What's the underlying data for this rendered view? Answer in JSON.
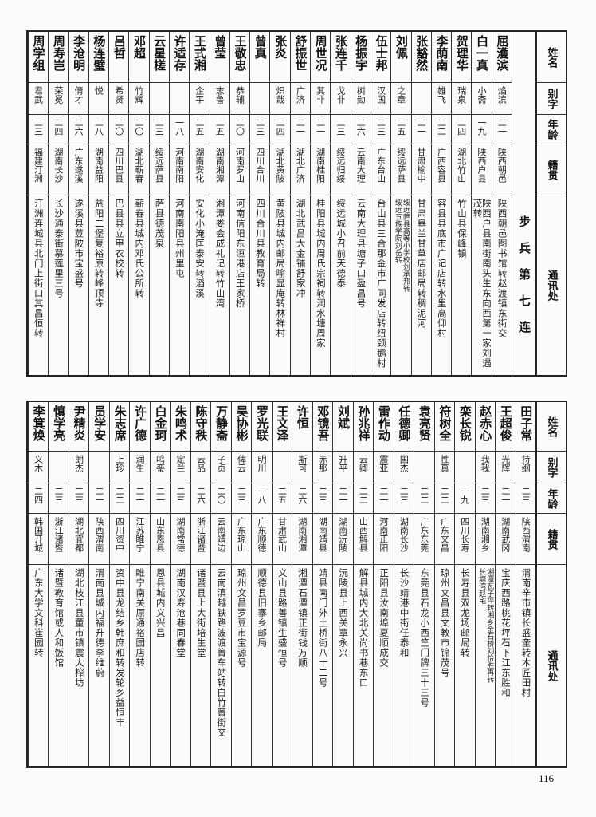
{
  "headers": {
    "name": "姓名",
    "alias": "别字",
    "age": "年龄",
    "native": "籍贯",
    "address": "通讯处"
  },
  "top": {
    "section_label": "步兵第七连",
    "rows": [
      {
        "name": "屈濩滨",
        "alias": "焰滨",
        "age": "二一",
        "native": "陕西朝邑",
        "address": [
          "陕西朝邑图书馆转赵渡镇东街交"
        ]
      },
      {
        "name": "白一真",
        "alias": "小斋",
        "age": "一九",
        "native": "陕西户县",
        "address": [
          "陕西户县南街南头生东向西第一家刘遇茂转"
        ]
      },
      {
        "name": "贺理华",
        "alias": "瑞泉",
        "age": "二四",
        "native": "湖北竹山",
        "address": [
          "竹山县保峰镇"
        ]
      },
      {
        "name": "李荫南",
        "alias": "雄飞",
        "age": "二二",
        "native": "广西容县",
        "address": [
          "容县县底市广记店转水里高仰村"
        ]
      },
      {
        "name": "张豁然",
        "alias": "",
        "age": "二一",
        "native": "甘肃榆中",
        "address": [
          "甘肃皋兰甘草店邮局转稠泥河"
        ]
      },
      {
        "name": "刘佩",
        "alias": "之章",
        "age": "二五",
        "native": "绥远萨县",
        "address": [
          "绥远萨县高等小学校刘承邦转",
          "绥远五族学院刘岳转"
        ]
      },
      {
        "name": "伍士邦",
        "alias": "汉国",
        "age": "二三",
        "native": "广东台山",
        "address": [
          "台山县三合那金市广同发店转纽颈鹅村"
        ]
      },
      {
        "name": "杨振宇",
        "alias": "树勋",
        "age": "二六",
        "native": "云南大理",
        "address": [
          "云南大理县塘子口盈昌号"
        ]
      },
      {
        "name": "张连千",
        "alias": "戈非",
        "age": "二三",
        "native": "绥远归绥",
        "address": [
          "绥远城小召前天德泰"
        ]
      },
      {
        "name": "周世况",
        "alias": "其非",
        "age": "二一",
        "native": "湖南桂阳",
        "address": [
          "桂阳县城内周氏宗祠转洞水塘周家"
        ]
      },
      {
        "name": "舒振世",
        "alias": "广济",
        "age": "二一",
        "native": "湖北广济",
        "address": [
          "湖北武昌大金铺舒家冲"
        ]
      },
      {
        "name": "张炎",
        "alias": "炽哉",
        "age": "二四",
        "native": "湖北黄陂",
        "address": [
          "黄陂县城内邮局喻显庵转林祥村"
        ]
      },
      {
        "name": "曾真",
        "alias": "",
        "age": "二三",
        "native": "四川合川",
        "address": [
          "四川合川县教育局转"
        ]
      },
      {
        "name": "王敬忠",
        "alias": "恭辅",
        "age": "二〇",
        "native": "河南罗山",
        "address": [
          "河南信阳东洹港店王家桥"
        ]
      },
      {
        "name": "曾莹",
        "alias": "志鲁",
        "age": "二五",
        "native": "湖南湘潭",
        "address": [
          "湘潭娄会成礼记转竹山湾"
        ]
      },
      {
        "name": "王式湘",
        "alias": "企平",
        "age": "二五",
        "native": "湖南安化",
        "address": [
          "安化小淹匡泰安转滔溪"
        ]
      },
      {
        "name": "许适存",
        "alias": "",
        "age": "一八",
        "native": "河南南阳",
        "address": [
          "河南南阳县州里屯"
        ]
      },
      {
        "name": "云星槎",
        "alias": "",
        "age": "二三",
        "native": "绥远萨县",
        "address": [
          "萨县德茂泉"
        ]
      },
      {
        "name": "邓超",
        "alias": "竹辉",
        "age": "二〇",
        "native": "湖北蕲春",
        "address": [
          "蕲春县城内邓氏公所转"
        ]
      },
      {
        "name": "吕哲",
        "alias": "希贤",
        "age": "二〇",
        "native": "四川巴县",
        "address": [
          "巴县县立甲农校转"
        ]
      },
      {
        "name": "杨连璧",
        "alias": "悦",
        "age": "二八",
        "native": "湖南益阳",
        "address": [
          "益阳二堡复裕原转峰顶寺"
        ]
      },
      {
        "name": "李沧明",
        "alias": "倩才",
        "age": "二六",
        "native": "广东遂溪",
        "address": [
          "遂溪县荳陂市宝盛号"
        ]
      },
      {
        "name": "周寿岂",
        "alias": "荣冕",
        "age": "二四",
        "native": "湖南长沙",
        "address": [
          "长沙通泰街慕莲里三号"
        ]
      },
      {
        "name": "周学组",
        "alias": "君武",
        "age": "二三",
        "native": "福建汀洲",
        "address": [
          "汀洲连城县北门上街口其昌恒转"
        ]
      }
    ]
  },
  "bottom": {
    "rows": [
      {
        "name": "田子常",
        "alias": "持纲",
        "age": "二三",
        "native": "陕西渭南",
        "address": [
          "渭南辛市镇长盛奎转木匠田村"
        ]
      },
      {
        "name": "王超俊",
        "alias": "光辉",
        "age": "二一",
        "native": "湖南武冈",
        "address": [
          "宝庆西路桃花坪石下江东胜和"
        ]
      },
      {
        "name": "赵赤心",
        "alias": "我我",
        "age": "二三",
        "native": "湖南湘乡",
        "address": [
          "湘潭瓦子坪转湘乡金石桥刘怡胜再转",
          "长塘湾赵宅"
        ]
      },
      {
        "name": "栾长锐",
        "alias": "",
        "age": "一九",
        "native": "四川长寿",
        "address": [
          "长寿县双龙场邮局转"
        ]
      },
      {
        "name": "符树全",
        "alias": "性真",
        "age": "二二",
        "native": "广东文昌",
        "address": [
          "琼州文昌县文教市锦茂号"
        ]
      },
      {
        "name": "袁亮贤",
        "alias": "",
        "age": "二二",
        "native": "广东东莞",
        "address": [
          "东莞县石龙小西竺门牌三十三号"
        ]
      },
      {
        "name": "任德卿",
        "alias": "国杰",
        "age": "二三",
        "native": "湖南长沙",
        "address": [
          "长沙靖港中街任泰和"
        ]
      },
      {
        "name": "雷作动",
        "alias": "震亚",
        "age": "二一",
        "native": "河南正阳",
        "address": [
          "正阳县汝南埠夏顺成交"
        ]
      },
      {
        "name": "孙兆祥",
        "alias": "云卿",
        "age": "二二",
        "native": "山西解县",
        "address": [
          "解县城内大北关尚书巷东口"
        ]
      },
      {
        "name": "刘斌",
        "alias": "升平",
        "age": "二一",
        "native": "湖南沅陵",
        "address": [
          "沅陵县上西关覃永兴"
        ]
      },
      {
        "name": "邓镜吾",
        "alias": "赤那",
        "age": "二三",
        "native": "湖南靖县",
        "address": [
          "靖县南门外土桥街八十二号"
        ]
      },
      {
        "name": "许恒",
        "alias": "斯可",
        "age": "二六",
        "native": "湖南湘潭",
        "address": [
          "湘潭石潭镇正街钱万顺"
        ]
      },
      {
        "name": "王文泽",
        "alias": "",
        "age": "二五",
        "native": "甘肃武山",
        "address": [
          "义山县路善镇生盛恒号"
        ]
      },
      {
        "name": "罗光联",
        "alias": "明川",
        "age": "一八",
        "native": "广东顺德",
        "address": [
          "顺德县旧寨乡邮局"
        ]
      },
      {
        "name": "吴协彬",
        "alias": "俾云",
        "age": "二三",
        "native": "广东琼山",
        "address": [
          "琼州文昌罗豆市宝源号"
        ]
      },
      {
        "name": "万静斋",
        "alias": "子贞",
        "age": "二〇",
        "native": "云南靖边",
        "address": [
          "云南滇越铁路波渡箐车站转白竹箐街交"
        ]
      },
      {
        "name": "陈守秩",
        "alias": "云品",
        "age": "二六",
        "native": "浙江诸暨",
        "address": [
          "诸暨县上大街培生堂"
        ]
      },
      {
        "name": "朱鸣术",
        "alias": "定兰",
        "age": "二三",
        "native": "湖南常德",
        "address": [
          "湖南汉寿沧巷同春堂"
        ]
      },
      {
        "name": "白金珂",
        "alias": "鸣銮",
        "age": "二一",
        "native": "山东恩县",
        "address": [
          "恩县城内义兴昌"
        ]
      },
      {
        "name": "许广德",
        "alias": "润生",
        "age": "二一",
        "native": "江苏睢宁",
        "address": [
          "睢宁南关原通裕园店转"
        ]
      },
      {
        "name": "朱志席",
        "alias": "上珍",
        "age": "二二",
        "native": "四川资中",
        "address": [
          "资中县龙结乡韩庶和转发轮乡益恒丰"
        ]
      },
      {
        "name": "员学安",
        "alias": "",
        "age": "二一",
        "native": "陕西渭南",
        "address": [
          "渭南县城内福升德李维蔚"
        ]
      },
      {
        "name": "尹精炎",
        "alias": "朗杰",
        "age": "二三",
        "native": "湖北宜都",
        "address": [
          "湖北枝江县董市镇震大榨坊"
        ]
      },
      {
        "name": "慎学亮",
        "alias": "",
        "age": "二三",
        "native": "浙江诸暨",
        "address": [
          "诸暨教育馆或人和饭馆"
        ]
      },
      {
        "name": "李箕焕",
        "alias": "义木",
        "age": "二四",
        "native": "韩国开城",
        "address": [
          "广东大学文科崔园转"
        ]
      }
    ]
  },
  "page_number": "116"
}
